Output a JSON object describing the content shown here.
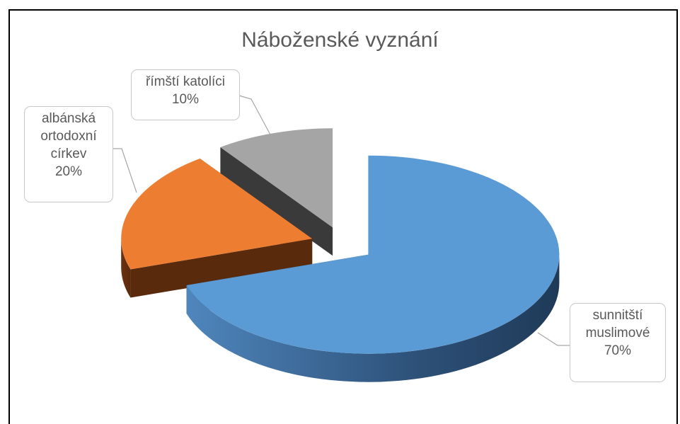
{
  "chart_data": {
    "type": "pie3d",
    "title": "Náboženské vyznání",
    "categories": [
      "sunnitští muslimové",
      "albánská ortodoxní církev",
      "římští katolíci"
    ],
    "values": [
      70,
      20,
      10
    ],
    "value_labels": [
      "70%",
      "20%",
      "10%"
    ],
    "colors": [
      "#5b9bd5",
      "#ed7d31",
      "#a5a5a5"
    ]
  }
}
